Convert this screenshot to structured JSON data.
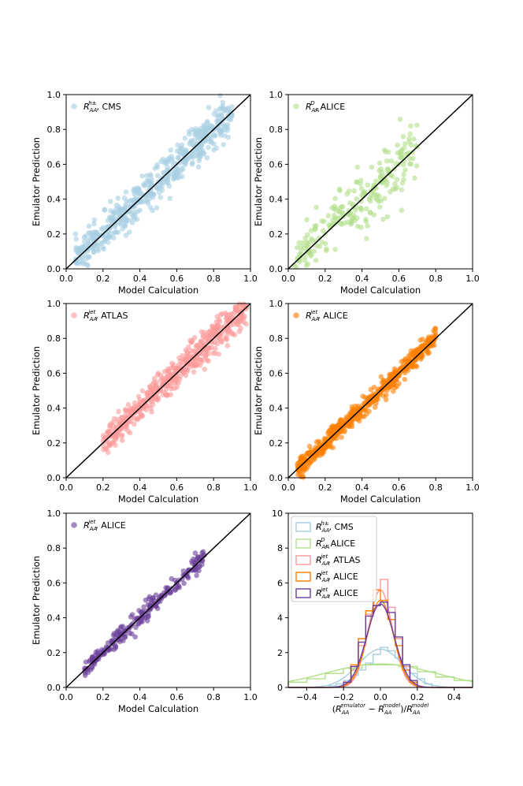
{
  "chart_data": [
    {
      "type": "scatter",
      "xlabel": "Model Calculation",
      "ylabel": "Emulator Prediction",
      "xlim": [
        0,
        1
      ],
      "ylim": [
        0,
        1
      ],
      "xticks": [
        "0.0",
        "0.2",
        "0.4",
        "0.6",
        "0.8",
        "1.0"
      ],
      "yticks": [
        "0.0",
        "0.2",
        "0.4",
        "0.6",
        "0.8",
        "1.0"
      ],
      "legend_location": "top-left",
      "series": [
        {
          "name": "R_AA^{h±}, CMS",
          "legend_main": "R",
          "legend_sub": "AA",
          "legend_sup": "h±",
          "legend_suffix": ", CMS",
          "color": "#a6cee3",
          "x": [
            0.05,
            0.1,
            0.15,
            0.2,
            0.25,
            0.3,
            0.35,
            0.4,
            0.45,
            0.5,
            0.55,
            0.6,
            0.65,
            0.7,
            0.75,
            0.8,
            0.85,
            0.9
          ],
          "y": [
            0.05,
            0.1,
            0.16,
            0.2,
            0.26,
            0.3,
            0.36,
            0.41,
            0.45,
            0.5,
            0.56,
            0.6,
            0.66,
            0.7,
            0.76,
            0.8,
            0.86,
            0.88
          ]
        }
      ],
      "identity_line": true
    },
    {
      "type": "scatter",
      "xlabel": "Model Calculation",
      "ylabel": "Emulator Prediction",
      "xlim": [
        0,
        1
      ],
      "ylim": [
        0,
        1
      ],
      "xticks": [
        "0.0",
        "0.2",
        "0.4",
        "0.6",
        "0.8",
        "1.0"
      ],
      "yticks": [
        "0.0",
        "0.2",
        "0.4",
        "0.6",
        "0.8",
        "1.0"
      ],
      "legend_location": "top-left",
      "series": [
        {
          "name": "R_AA^D, ALICE",
          "legend_main": "R",
          "legend_sub": "AA",
          "legend_sup": "D",
          "legend_suffix": ", ALICE",
          "color": "#b2df8a",
          "x": [
            0.03,
            0.06,
            0.1,
            0.15,
            0.2,
            0.25,
            0.3,
            0.35,
            0.4,
            0.45,
            0.5,
            0.55,
            0.6,
            0.65,
            0.7
          ],
          "y": [
            0.02,
            0.05,
            0.1,
            0.16,
            0.2,
            0.26,
            0.3,
            0.36,
            0.42,
            0.45,
            0.5,
            0.56,
            0.6,
            0.66,
            0.7
          ]
        }
      ],
      "identity_line": true
    },
    {
      "type": "scatter",
      "xlabel": "Model Calculation",
      "ylabel": "Emulator Prediction",
      "xlim": [
        0,
        1
      ],
      "ylim": [
        0,
        1
      ],
      "xticks": [
        "0.0",
        "0.2",
        "0.4",
        "0.6",
        "0.8",
        "1.0"
      ],
      "yticks": [
        "0.0",
        "0.2",
        "0.4",
        "0.6",
        "0.8",
        "1.0"
      ],
      "legend_location": "top-left",
      "series": [
        {
          "name": "R_AA^jet, ATLAS",
          "legend_main": "R",
          "legend_sub": "AA",
          "legend_sup": "jet",
          "legend_suffix": ", ATLAS",
          "color": "#fb9a99",
          "x": [
            0.2,
            0.25,
            0.3,
            0.35,
            0.4,
            0.45,
            0.5,
            0.55,
            0.6,
            0.65,
            0.7,
            0.75,
            0.8,
            0.85,
            0.9,
            0.95,
            0.98
          ],
          "y": [
            0.21,
            0.24,
            0.3,
            0.36,
            0.4,
            0.45,
            0.5,
            0.56,
            0.6,
            0.66,
            0.7,
            0.75,
            0.8,
            0.86,
            0.9,
            0.94,
            0.98
          ]
        }
      ],
      "identity_line": true
    },
    {
      "type": "scatter",
      "xlabel": "Model Calculation",
      "ylabel": "Emulator Prediction",
      "xlim": [
        0,
        1
      ],
      "ylim": [
        0,
        1
      ],
      "xticks": [
        "0.0",
        "0.2",
        "0.4",
        "0.6",
        "0.8",
        "1.0"
      ],
      "yticks": [
        "0.0",
        "0.2",
        "0.4",
        "0.6",
        "0.8",
        "1.0"
      ],
      "legend_location": "top-left",
      "series": [
        {
          "name": "R_AA^jet, ALICE",
          "legend_main": "R",
          "legend_sub": "AA",
          "legend_sup": "jet",
          "legend_suffix": ", ALICE",
          "color": "#ff7f00",
          "x": [
            0.05,
            0.1,
            0.15,
            0.2,
            0.25,
            0.3,
            0.35,
            0.4,
            0.45,
            0.5,
            0.55,
            0.6,
            0.65,
            0.7,
            0.75,
            0.8
          ],
          "y": [
            0.08,
            0.1,
            0.16,
            0.2,
            0.25,
            0.3,
            0.35,
            0.4,
            0.45,
            0.5,
            0.55,
            0.6,
            0.65,
            0.7,
            0.75,
            0.82
          ]
        }
      ],
      "identity_line": true
    },
    {
      "type": "scatter",
      "xlabel": "Model Calculation",
      "ylabel": "Emulator Prediction",
      "xlim": [
        0,
        1
      ],
      "ylim": [
        0,
        1
      ],
      "xticks": [
        "0.0",
        "0.2",
        "0.4",
        "0.6",
        "0.8",
        "1.0"
      ],
      "yticks": [
        "0.0",
        "0.2",
        "0.4",
        "0.6",
        "0.8",
        "1.0"
      ],
      "legend_location": "top-left",
      "series": [
        {
          "name": "R_AA^jet, ALICE",
          "legend_main": "R",
          "legend_sub": "AA",
          "legend_sup": "jet",
          "legend_suffix": ", ALICE",
          "color": "#6a3d9a",
          "x": [
            0.1,
            0.15,
            0.2,
            0.25,
            0.3,
            0.35,
            0.4,
            0.45,
            0.5,
            0.55,
            0.6,
            0.65,
            0.7,
            0.75
          ],
          "y": [
            0.11,
            0.15,
            0.2,
            0.25,
            0.3,
            0.35,
            0.4,
            0.45,
            0.5,
            0.55,
            0.6,
            0.65,
            0.7,
            0.76
          ]
        }
      ],
      "identity_line": true
    },
    {
      "type": "histogram",
      "xlabel": "(R_AA^emulator − R_AA^model)/R_AA^model",
      "xlabel_parts": {
        "open": "(",
        "main": "R",
        "sub": "AA",
        "sup1": "emulator",
        "minus": " − ",
        "sup2": "model",
        "close": ")/"
      },
      "ylabel": "",
      "xlim": [
        -0.5,
        0.5
      ],
      "ylim": [
        0,
        10
      ],
      "xticks": [
        "−0.4",
        "−0.2",
        "0.0",
        "0.2",
        "0.4"
      ],
      "xtick_values": [
        -0.4,
        -0.2,
        0.0,
        0.2,
        0.4
      ],
      "yticks": [
        "0",
        "2",
        "4",
        "6",
        "8",
        "10"
      ],
      "legend_location": "top-left",
      "series": [
        {
          "name": "R_AA^{h±}, CMS",
          "legend_sup": "h±",
          "legend_suffix": ", CMS",
          "color": "#a6cee3",
          "edges": [
            -0.28,
            -0.24,
            -0.2,
            -0.16,
            -0.12,
            -0.08,
            -0.04,
            0.0,
            0.04,
            0.08,
            0.12,
            0.16,
            0.2,
            0.24,
            0.28
          ],
          "counts": [
            0.1,
            0.2,
            0.4,
            0.7,
            1.0,
            1.4,
            1.9,
            2.3,
            2.1,
            1.7,
            1.3,
            0.8,
            0.5,
            0.2
          ],
          "fit_mu": 0.0,
          "fit_sigma": 0.12,
          "fit_peak": 2.2
        },
        {
          "name": "R_AA^D, ALICE",
          "legend_sup": "D",
          "legend_suffix": ", ALICE",
          "color": "#b2df8a",
          "edges": [
            -0.5,
            -0.4,
            -0.3,
            -0.2,
            -0.1,
            0.0,
            0.1,
            0.2,
            0.3,
            0.4,
            0.5
          ],
          "counts": [
            0.3,
            0.5,
            0.8,
            1.1,
            1.3,
            1.3,
            1.2,
            0.9,
            0.6,
            0.4
          ],
          "fit_mu": 0.0,
          "fit_sigma": 0.3,
          "fit_peak": 1.35
        },
        {
          "name": "R_AA^jet, ATLAS",
          "legend_sup": "jet",
          "legend_suffix": ", ATLAS",
          "color": "#fb9a99",
          "edges": [
            -0.2,
            -0.16,
            -0.12,
            -0.08,
            -0.04,
            0.0,
            0.04,
            0.08,
            0.12,
            0.16,
            0.2
          ],
          "counts": [
            0.3,
            1.0,
            2.4,
            4.2,
            5.6,
            6.2,
            4.6,
            2.8,
            1.2,
            0.3
          ],
          "fit_mu": 0.0,
          "fit_sigma": 0.065,
          "fit_peak": 5.6
        },
        {
          "name": "R_AA^jet, ALICE",
          "legend_sup": "jet",
          "legend_suffix": ", ALICE",
          "color": "#ff7f00",
          "edges": [
            -0.2,
            -0.16,
            -0.12,
            -0.08,
            -0.04,
            0.0,
            0.04,
            0.08,
            0.12,
            0.16,
            0.2
          ],
          "counts": [
            0.3,
            1.3,
            2.8,
            4.4,
            5.6,
            5.0,
            3.9,
            2.4,
            1.0,
            0.3
          ],
          "fit_mu": 0.0,
          "fit_sigma": 0.07,
          "fit_peak": 5.0
        },
        {
          "name": "R_AA^jet, ALICE",
          "legend_sup": "jet",
          "legend_suffix": ", ALICE",
          "color": "#6a3d9a",
          "edges": [
            -0.2,
            -0.16,
            -0.12,
            -0.08,
            -0.04,
            0.0,
            0.04,
            0.08,
            0.12,
            0.16,
            0.2
          ],
          "counts": [
            0.3,
            1.2,
            2.6,
            4.1,
            4.7,
            4.9,
            4.3,
            2.9,
            1.3,
            0.4
          ],
          "fit_mu": 0.0,
          "fit_sigma": 0.075,
          "fit_peak": 4.8
        }
      ]
    }
  ]
}
